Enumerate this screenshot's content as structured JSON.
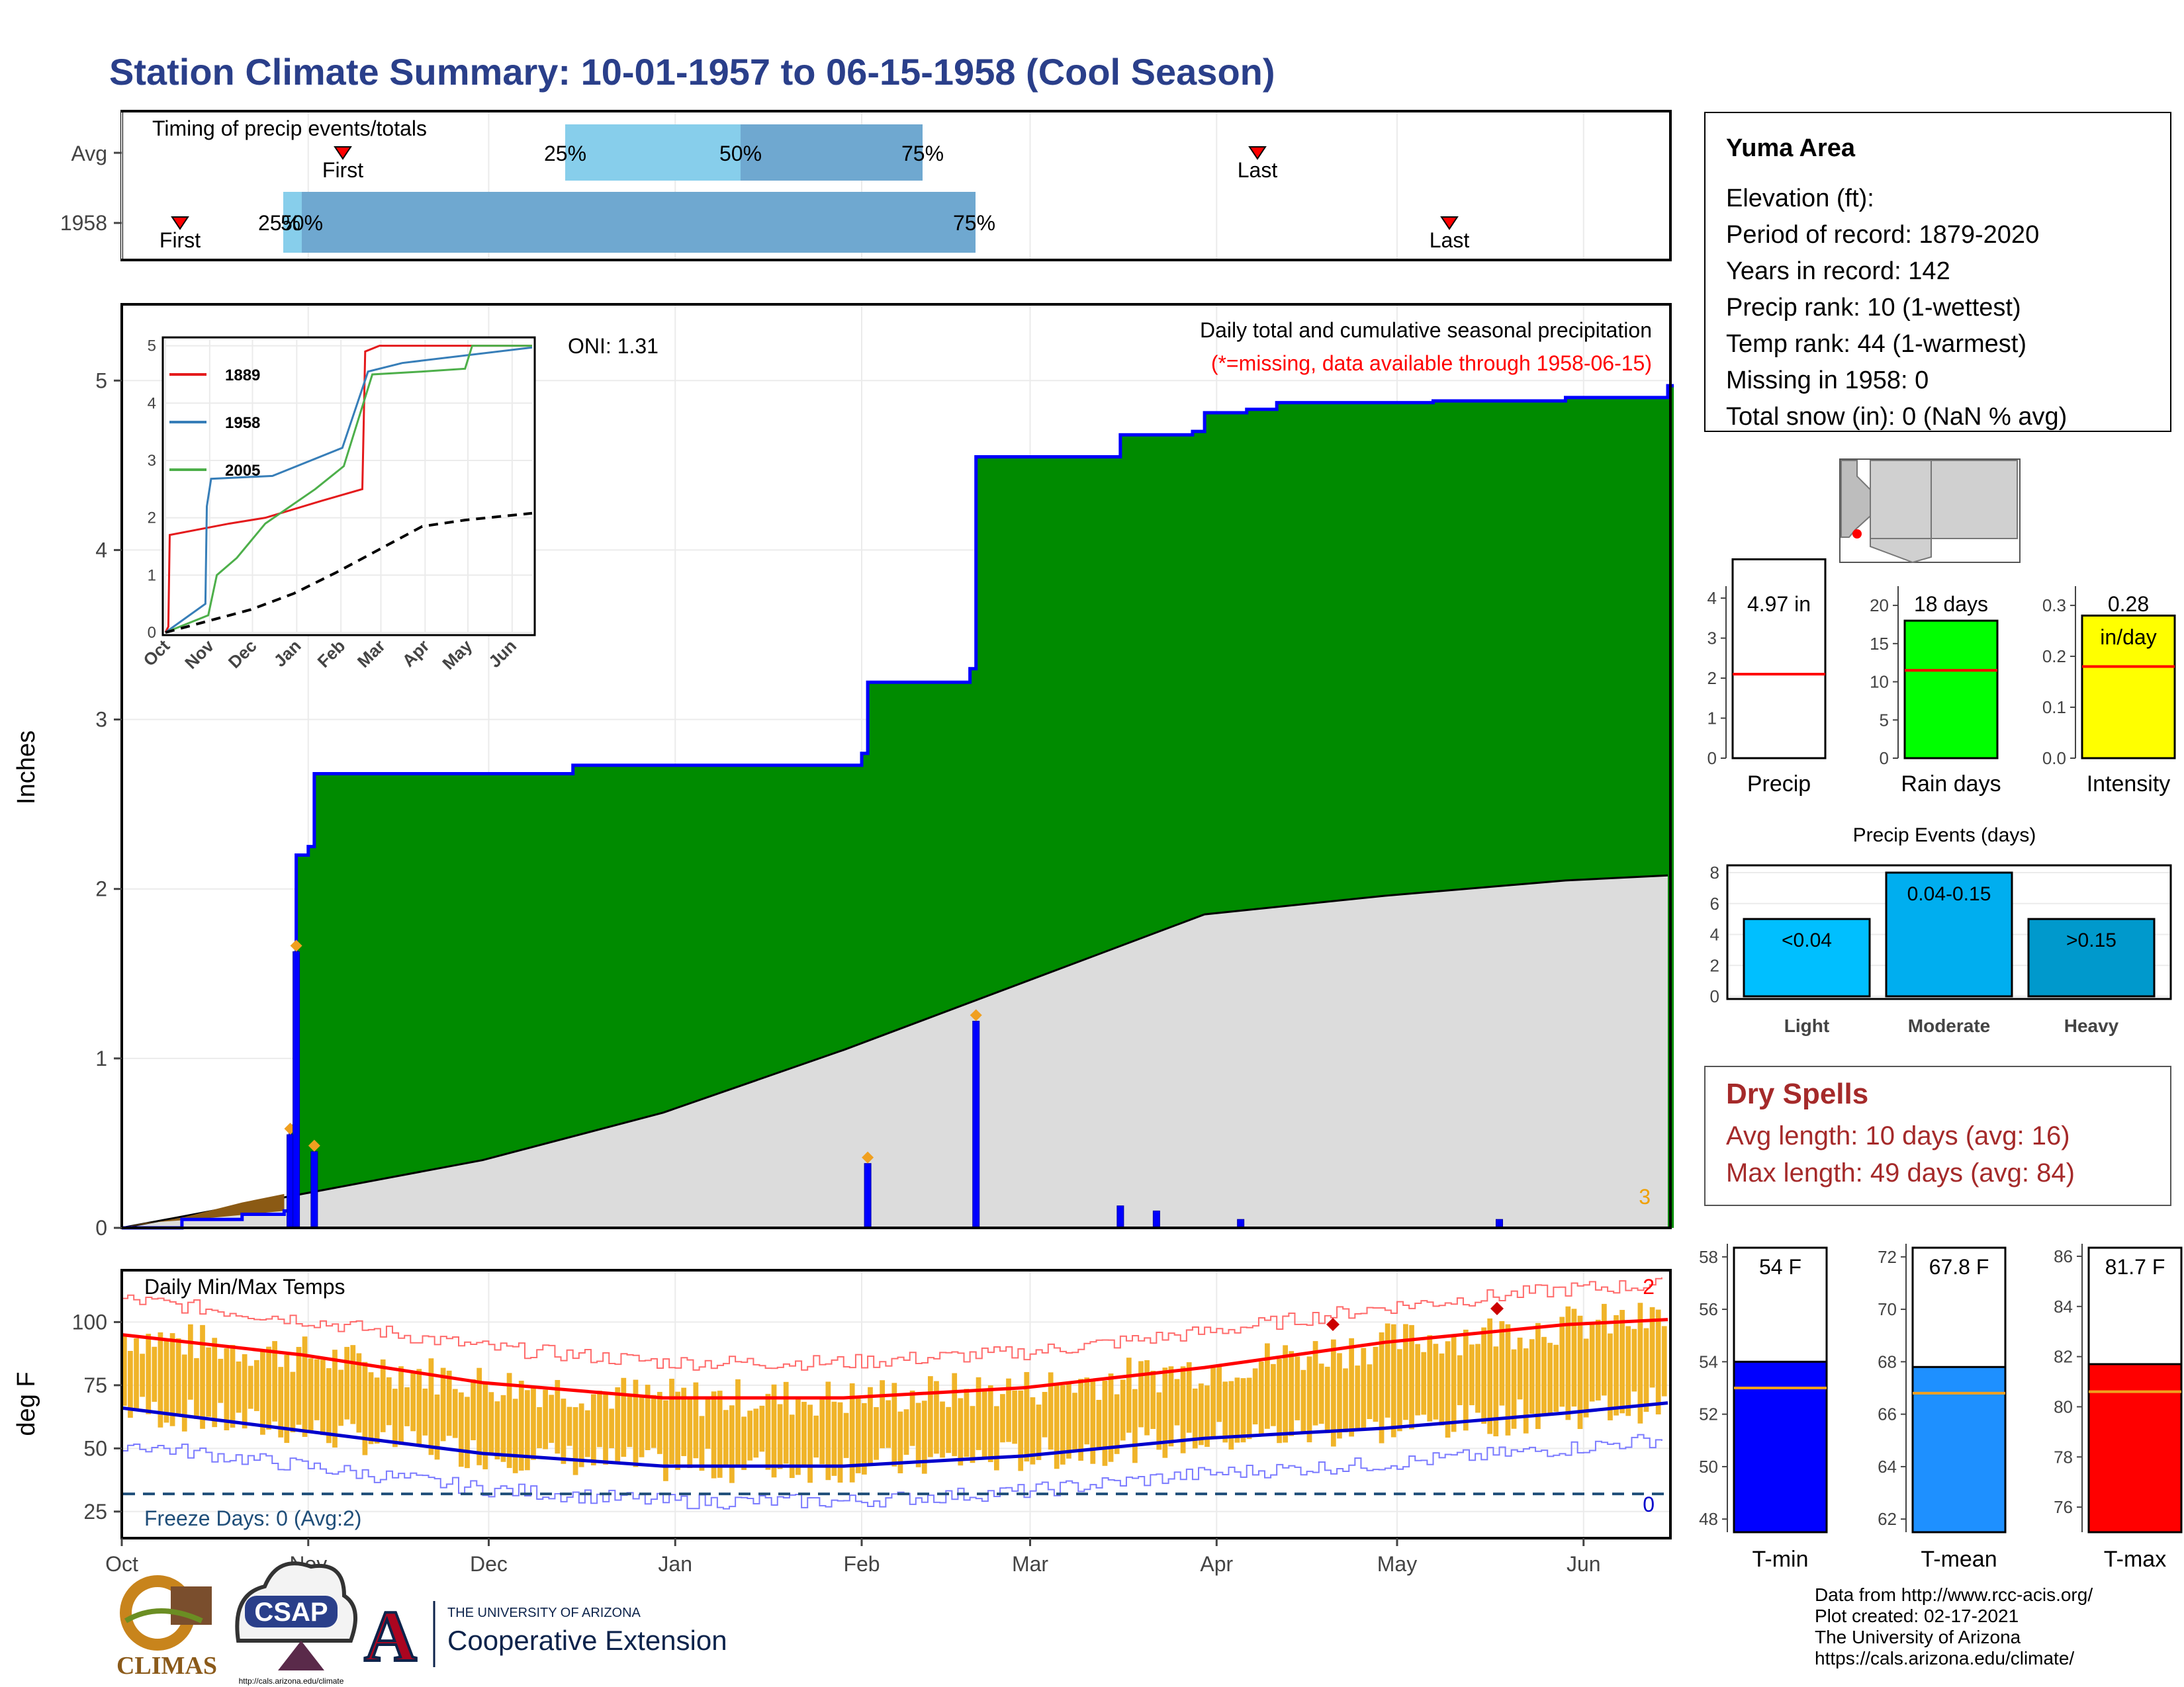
{
  "title": "Station Climate Summary: 10-01-1957 to 06-15-1958 (Cool Season)",
  "colors": {
    "title": "#2a3f8a",
    "green": "#008b00",
    "blue": "#0000ff",
    "gray": "#dcdcdc",
    "orange": "#f0b429",
    "red": "#ff0000",
    "dryspell": "#a52a2a"
  },
  "timing": {
    "title": "Timing of precip events/totals",
    "rows": [
      "Avg",
      "1958"
    ],
    "avg": {
      "first": "First",
      "last": "Last",
      "p25": "25%",
      "p50": "50%",
      "p75": "75%"
    },
    "y1958": {
      "first": "First",
      "last": "Last",
      "p25": "25%",
      "p50": "50%",
      "p75": "75%"
    }
  },
  "precip_panel": {
    "ylabel": "Inches",
    "oni": "ONI: 1.31",
    "subtitle1": "Daily total and cumulative seasonal precipitation",
    "subtitle2": "(*=missing, data available through 1958-06-15)",
    "corner_count": "3",
    "yticks": [
      "0",
      "1",
      "2",
      "3",
      "4",
      "5"
    ]
  },
  "inset": {
    "yticks": [
      "0",
      "1",
      "2",
      "3",
      "4",
      "5"
    ],
    "xticks": [
      "Oct",
      "Nov",
      "Dec",
      "Jan",
      "Feb",
      "Mar",
      "Apr",
      "May",
      "Jun"
    ],
    "legend": [
      {
        "name": "1889",
        "color": "#e41a1c"
      },
      {
        "name": "1958",
        "color": "#377eb8"
      },
      {
        "name": "2005",
        "color": "#4daf4a"
      }
    ]
  },
  "temp_panel": {
    "ylabel": "deg F",
    "title": "Daily Min/Max Temps",
    "freeze": "Freeze Days: 0 (Avg:2)",
    "hot_count": "2",
    "cold_count": "0",
    "yticks": [
      "25",
      "50",
      "75",
      "100"
    ]
  },
  "months": [
    "Oct",
    "Nov",
    "Dec",
    "Jan",
    "Feb",
    "Mar",
    "Apr",
    "May",
    "Jun"
  ],
  "station": {
    "name": "Yuma Area",
    "lines": [
      "Elevation (ft):",
      "Period of record: 1879-2020",
      "Years in record: 142",
      "Precip rank: 10 (1-wettest)",
      "Temp rank: 44 (1-warmest)",
      "Missing in 1958: 0",
      "Total snow (in): 0 (NaN % avg)"
    ]
  },
  "mini_bars": [
    {
      "label": "Precip",
      "value_text": "4.97 in",
      "unit": "",
      "color": "#ffffff",
      "yticks": [
        "0",
        "1",
        "2",
        "3",
        "4"
      ]
    },
    {
      "label": "Rain days",
      "value_text": "18 days",
      "unit": "",
      "color": "#00ff00",
      "yticks": [
        "0",
        "5",
        "10",
        "15",
        "20"
      ]
    },
    {
      "label": "Intensity",
      "value_text": "0.28",
      "unit": "in/day",
      "color": "#ffff00",
      "yticks": [
        "0.0",
        "0.1",
        "0.2",
        "0.3"
      ]
    }
  ],
  "events": {
    "title": "Precip Events (days)",
    "yticks": [
      "0",
      "2",
      "4",
      "6",
      "8"
    ],
    "bars": [
      {
        "label": "Light",
        "range": "<0.04",
        "color": "#00bfff"
      },
      {
        "label": "Moderate",
        "range": "0.04-0.15",
        "color": "#00aeef"
      },
      {
        "label": "Heavy",
        "range": ">0.15",
        "color": "#0099cc"
      }
    ]
  },
  "dry_spells": {
    "title": "Dry Spells",
    "avg": "Avg length: 10 days (avg: 16)",
    "max": "Max length: 49 days (avg: 84)"
  },
  "temp_bars": [
    {
      "label": "T-min",
      "value_text": "54 F",
      "color": "#0000ff",
      "yticks": [
        "48",
        "50",
        "52",
        "54",
        "56",
        "58"
      ]
    },
    {
      "label": "T-mean",
      "value_text": "67.8 F",
      "color": "#1e90ff",
      "yticks": [
        "62",
        "64",
        "66",
        "68",
        "70",
        "72"
      ]
    },
    {
      "label": "T-max",
      "value_text": "81.7 F",
      "color": "#ff0000",
      "yticks": [
        "76",
        "78",
        "80",
        "82",
        "84",
        "86"
      ]
    }
  ],
  "footer": {
    "lines": [
      "Data from http://www.rcc-acis.org/",
      "Plot created: 02-17-2021",
      "The University of Arizona",
      "https://cals.arizona.edu/climate/"
    ],
    "logo1": "CLIMAS",
    "logo2": "CSAP",
    "logo2_url": "http://cals.arizona.edu/climate",
    "ua_line1": "THE UNIVERSITY OF ARIZONA",
    "ua_line2": "Cooperative Extension",
    "ua_letter": "A"
  },
  "chart_data": [
    {
      "type": "bar",
      "title": "Timing of precip events/totals",
      "categories": [
        "Avg",
        "1958"
      ],
      "series": [
        {
          "name": "Avg",
          "first": "Oct 1957 late",
          "p25": "Dec 15",
          "p50": "Jan 15",
          "p75": "Feb 15",
          "last": "Apr 10"
        },
        {
          "name": "1958",
          "first": "Oct 10",
          "p25": "Oct 28",
          "p50": "Oct 31",
          "p75": "Feb 25",
          "last": "May 10"
        }
      ]
    },
    {
      "type": "area",
      "title": "Daily total and cumulative seasonal precipitation",
      "ylabel": "Inches",
      "ylim": [
        0,
        5.3
      ],
      "x_range": [
        "1957-10-01",
        "1958-06-15"
      ],
      "cumulative_1958": [
        [
          0,
          0
        ],
        [
          10,
          0.05
        ],
        [
          20,
          0.08
        ],
        [
          27,
          0.1
        ],
        [
          28,
          0.6
        ],
        [
          29,
          2.2
        ],
        [
          31,
          2.25
        ],
        [
          32,
          2.68
        ],
        [
          60,
          2.68
        ],
        [
          75,
          2.73
        ],
        [
          122,
          2.73
        ],
        [
          123,
          2.8
        ],
        [
          124,
          3.22
        ],
        [
          140,
          3.22
        ],
        [
          141,
          3.3
        ],
        [
          142,
          4.55
        ],
        [
          165,
          4.55
        ],
        [
          166,
          4.68
        ],
        [
          178,
          4.7
        ],
        [
          180,
          4.81
        ],
        [
          187,
          4.83
        ],
        [
          192,
          4.87
        ],
        [
          218,
          4.88
        ],
        [
          240,
          4.9
        ],
        [
          258,
          4.97
        ],
        [
          257,
          4.97
        ]
      ],
      "cumulative_avg": [
        [
          0,
          0
        ],
        [
          30,
          0.2
        ],
        [
          60,
          0.4
        ],
        [
          90,
          0.68
        ],
        [
          120,
          1.05
        ],
        [
          150,
          1.45
        ],
        [
          180,
          1.85
        ],
        [
          210,
          1.96
        ],
        [
          240,
          2.05
        ],
        [
          257,
          2.08
        ]
      ],
      "daily_peaks": [
        [
          28,
          0.55
        ],
        [
          29,
          1.63
        ],
        [
          32,
          0.45
        ],
        [
          124,
          0.38
        ],
        [
          142,
          1.22
        ],
        [
          166,
          0.13
        ],
        [
          172,
          0.1
        ],
        [
          186,
          0.05
        ],
        [
          229,
          0.05
        ]
      ]
    },
    {
      "type": "line",
      "title": "",
      "xticks": [
        "Oct",
        "Nov",
        "Dec",
        "Jan",
        "Feb",
        "Mar",
        "Apr",
        "May",
        "Jun"
      ],
      "ylim": [
        0,
        5
      ],
      "series": [
        {
          "name": "1889",
          "points": [
            [
              0,
              0
            ],
            [
              2,
              0.1
            ],
            [
              3,
              1.7
            ],
            [
              45,
              1.9
            ],
            [
              70,
              2.0
            ],
            [
              110,
              2.3
            ],
            [
              138,
              2.5
            ],
            [
              140,
              4.9
            ],
            [
              150,
              5.0
            ],
            [
              257,
              5.0
            ]
          ]
        },
        {
          "name": "1958",
          "points": [
            [
              0,
              0
            ],
            [
              28,
              0.5
            ],
            [
              29,
              2.2
            ],
            [
              32,
              2.68
            ],
            [
              75,
              2.73
            ],
            [
              124,
              3.22
            ],
            [
              142,
              4.55
            ],
            [
              166,
              4.7
            ],
            [
              257,
              4.97
            ]
          ]
        },
        {
          "name": "2005",
          "points": [
            [
              0,
              0
            ],
            [
              30,
              0.3
            ],
            [
              36,
              1.0
            ],
            [
              50,
              1.3
            ],
            [
              70,
              1.9
            ],
            [
              105,
              2.5
            ],
            [
              125,
              2.9
            ],
            [
              145,
              4.5
            ],
            [
              180,
              4.55
            ],
            [
              210,
              4.6
            ],
            [
              215,
              5.0
            ],
            [
              257,
              5.0
            ]
          ]
        },
        {
          "name": "",
          "points": [
            [
              0,
              0
            ],
            [
              30,
              0.2
            ],
            [
              60,
              0.4
            ],
            [
              90,
              0.68
            ],
            [
              120,
              1.05
            ],
            [
              150,
              1.45
            ],
            [
              180,
              1.85
            ],
            [
              210,
              1.96
            ],
            [
              257,
              2.08
            ]
          ]
        }
      ]
    },
    {
      "type": "area",
      "title": "Daily Min/Max Temps",
      "ylabel": "deg F",
      "ylim": [
        15,
        120
      ],
      "normal_max": [
        [
          0,
          95
        ],
        [
          30,
          87
        ],
        [
          60,
          76
        ],
        [
          90,
          70
        ],
        [
          120,
          70
        ],
        [
          150,
          74
        ],
        [
          180,
          82
        ],
        [
          210,
          92
        ],
        [
          240,
          99
        ],
        [
          257,
          101
        ]
      ],
      "normal_min": [
        [
          0,
          66
        ],
        [
          30,
          57
        ],
        [
          60,
          48
        ],
        [
          90,
          43
        ],
        [
          120,
          43
        ],
        [
          150,
          47
        ],
        [
          180,
          54
        ],
        [
          210,
          58
        ],
        [
          240,
          64
        ],
        [
          257,
          68
        ]
      ],
      "freeze_line": 32
    },
    {
      "type": "bar",
      "title": "",
      "categories": [
        "Precip",
        "Rain days",
        "Intensity"
      ],
      "values": [
        4.97,
        18,
        0.28
      ],
      "averages": [
        2.1,
        11.5,
        0.18
      ]
    },
    {
      "type": "bar",
      "title": "Precip Events (days)",
      "categories": [
        "Light",
        "Moderate",
        "Heavy"
      ],
      "values": [
        5,
        8,
        5
      ],
      "ylim": [
        0,
        8
      ]
    },
    {
      "type": "bar",
      "title": "",
      "categories": [
        "T-min",
        "T-mean",
        "T-max"
      ],
      "values": [
        54,
        67.8,
        81.7
      ],
      "averages": [
        53,
        66.8,
        80.6
      ]
    }
  ]
}
